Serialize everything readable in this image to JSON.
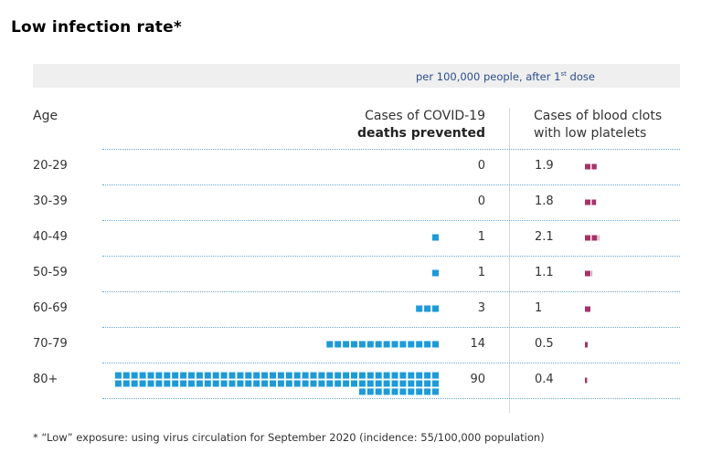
{
  "title": "Low infection rate*",
  "subhead": {
    "text": "per 100,000 people, after 1",
    "sup": "st",
    "tail": " dose"
  },
  "headers": {
    "age": "Age",
    "deaths_line1": "Cases of COVID-19",
    "deaths_line2": "deaths prevented",
    "clots_line1": "Cases of blood clots",
    "clots_line2": "with low platelets"
  },
  "colors": {
    "deaths": "#1e9ad6",
    "clots": "#a3346a"
  },
  "chart_data": {
    "type": "table",
    "categories": [
      "20-29",
      "30-39",
      "40-49",
      "50-59",
      "60-69",
      "70-79",
      "80+"
    ],
    "series": [
      {
        "name": "Cases of COVID-19 deaths prevented",
        "values": [
          0,
          0,
          1,
          1,
          3,
          14,
          90
        ]
      },
      {
        "name": "Cases of blood clots with low platelets",
        "values": [
          1.9,
          1.8,
          2.1,
          1.1,
          1,
          0.5,
          0.4
        ]
      }
    ],
    "value_labels": {
      "deaths": [
        "0",
        "0",
        "1",
        "1",
        "3",
        "14",
        "90"
      ],
      "clots": [
        "1.9",
        "1.8",
        "2.1",
        "1.1",
        "1",
        "0.5",
        "0.4"
      ]
    },
    "xlabel": "Age",
    "ylabel": "per 100,000 people, after 1st dose"
  },
  "footnote": "* “Low” exposure: using virus circulation for September 2020 (incidence: 55/100,000 population)"
}
